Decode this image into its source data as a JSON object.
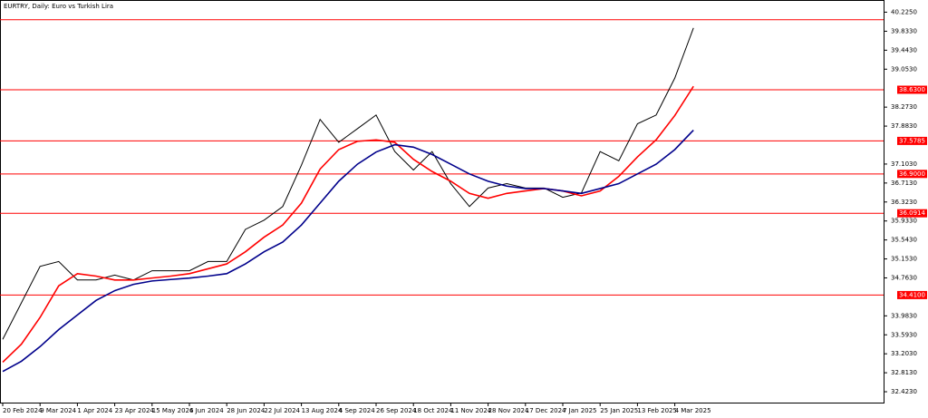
{
  "chart_data": {
    "type": "line",
    "title": "EURTRY, Daily:  Euro vs Turkish Lira",
    "categories": [
      "20 Feb 2024",
      null,
      "9 Mar 2024",
      null,
      "1 Apr 2024",
      null,
      "23 Apr 2024",
      null,
      "15 May 2024",
      null,
      "6 Jun 2024",
      null,
      "28 Jun 2024",
      null,
      "22 Jul 2024",
      null,
      "13 Aug 2024",
      null,
      "4 Sep 2024",
      null,
      "26 Sep 2024",
      null,
      "18 Oct 2024",
      null,
      "11 Nov 2024",
      null,
      "28 Nov 2024",
      null,
      "17 Dec 2024",
      null,
      "7 Jan 2025",
      null,
      "25 Jan 2025",
      null,
      "13 Feb 2025",
      null,
      "4 Mar 2025",
      null
    ],
    "series": [
      {
        "color": "#000000",
        "values": [
          33.5,
          34.25,
          35.0,
          35.1,
          34.72,
          34.72,
          34.82,
          34.72,
          34.91,
          34.91,
          34.91,
          35.1,
          35.1,
          35.76,
          35.95,
          36.23,
          37.08,
          38.02,
          37.55,
          37.83,
          38.11,
          37.36,
          36.98,
          37.36,
          36.7,
          36.23,
          36.61,
          36.7,
          36.61,
          36.61,
          36.42,
          36.51,
          37.36,
          37.17,
          37.93,
          38.11,
          38.87,
          39.9
        ]
      },
      {
        "color": "#ff0000",
        "values": [
          33.03,
          33.4,
          33.95,
          34.6,
          34.85,
          34.8,
          34.72,
          34.72,
          34.76,
          34.8,
          34.85,
          34.95,
          35.05,
          35.3,
          35.6,
          35.85,
          36.3,
          37.0,
          37.4,
          37.57,
          37.6,
          37.55,
          37.2,
          36.95,
          36.75,
          36.5,
          36.4,
          36.5,
          36.55,
          36.6,
          36.55,
          36.45,
          36.55,
          36.85,
          37.25,
          37.6,
          38.1,
          38.7
        ]
      },
      {
        "color": "#00008b",
        "values": [
          32.84,
          33.05,
          33.35,
          33.7,
          34.0,
          34.3,
          34.5,
          34.63,
          34.7,
          34.73,
          34.76,
          34.8,
          34.85,
          35.05,
          35.3,
          35.5,
          35.85,
          36.3,
          36.75,
          37.1,
          37.35,
          37.5,
          37.45,
          37.3,
          37.1,
          36.9,
          36.75,
          36.65,
          36.6,
          36.6,
          36.55,
          36.5,
          36.6,
          36.7,
          36.9,
          37.1,
          37.4,
          37.8
        ]
      }
    ],
    "ylim": [
      32.2,
      40.475
    ],
    "yticks": [
      {
        "value": 40.225,
        "label": "40.2250"
      },
      {
        "value": 39.833,
        "label": "39.8330"
      },
      {
        "value": 39.443,
        "label": "39.4430"
      },
      {
        "value": 39.053,
        "label": "39.0530"
      },
      {
        "value": 38.273,
        "label": "38.2730"
      },
      {
        "value": 37.883,
        "label": "37.8830"
      },
      {
        "value": 37.103,
        "label": "37.1030"
      },
      {
        "value": 36.713,
        "label": "36.7130"
      },
      {
        "value": 36.323,
        "label": "36.3230"
      },
      {
        "value": 35.933,
        "label": "35.9330"
      },
      {
        "value": 35.543,
        "label": "35.5430"
      },
      {
        "value": 35.153,
        "label": "35.1530"
      },
      {
        "value": 34.763,
        "label": "34.7630"
      },
      {
        "value": 33.983,
        "label": "33.9830"
      },
      {
        "value": 33.593,
        "label": "33.5930"
      },
      {
        "value": 33.203,
        "label": "33.2030"
      },
      {
        "value": 32.813,
        "label": "32.8130"
      },
      {
        "value": 32.423,
        "label": "32.4230"
      }
    ],
    "levels": [
      40.07,
      {
        "value": 38.63,
        "label": "38.6300"
      },
      {
        "value": 37.5785,
        "label": "37.5785"
      },
      {
        "value": 36.9,
        "label": "36.9000"
      },
      {
        "value": 36.0914,
        "label": "36.0914"
      },
      {
        "value": 34.41,
        "label": "34.4100"
      }
    ],
    "level_color": "#ff0000"
  }
}
